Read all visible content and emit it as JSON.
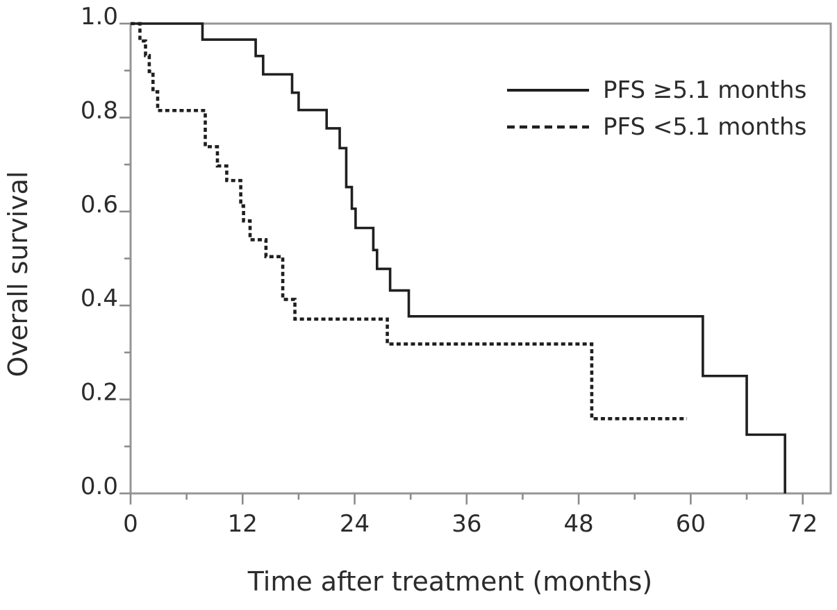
{
  "figure": {
    "background": "#ffffff",
    "frame_color": "#969696",
    "tick_color": "#8c8c8c",
    "curve_color": "#1f1f1f",
    "text_color": "#2b2b2b"
  },
  "chart_data": {
    "type": "line",
    "subtype": "kaplan-meier-step",
    "title": "",
    "xlabel": "Time after treatment (months)",
    "ylabel": "Overall survival",
    "xlim": [
      0,
      75
    ],
    "ylim": [
      0,
      1
    ],
    "x_major_ticks": [
      0,
      12,
      24,
      36,
      48,
      60,
      72
    ],
    "x_major_tick_labels": [
      "0",
      "12",
      "24",
      "36",
      "48",
      "60",
      "72"
    ],
    "x_minor_ticks": [
      6,
      18,
      30,
      42,
      54,
      66
    ],
    "y_major_ticks": [
      0,
      0.2,
      0.4,
      0.6,
      0.8,
      1
    ],
    "y_major_tick_labels": [
      "0.0",
      "0.2",
      "0.4",
      "0.6",
      "0.8",
      "1.0"
    ],
    "y_minor_ticks": [
      0.1,
      0.3,
      0.5,
      0.7,
      0.9
    ],
    "grid": false,
    "legend_position": "inside-upper-right",
    "series": [
      {
        "name": "PFS ≥5.1 months",
        "line_style": "solid",
        "steps": [
          [
            0,
            1.0
          ],
          [
            7.7,
            0.966
          ],
          [
            13.4,
            0.931
          ],
          [
            14.2,
            0.892
          ],
          [
            17.3,
            0.853
          ],
          [
            18.0,
            0.816
          ],
          [
            21.0,
            0.777
          ],
          [
            22.4,
            0.735
          ],
          [
            23.1,
            0.652
          ],
          [
            23.7,
            0.606
          ],
          [
            24.1,
            0.565
          ],
          [
            26.0,
            0.518
          ],
          [
            26.4,
            0.478
          ],
          [
            27.8,
            0.432
          ],
          [
            29.8,
            0.377
          ],
          [
            61.3,
            0.25
          ],
          [
            66.0,
            0.125
          ],
          [
            70.1,
            0.0
          ]
        ],
        "end_time": 70.1
      },
      {
        "name": "PFS <5.1 months",
        "line_style": "dashed",
        "steps": [
          [
            0,
            1.0
          ],
          [
            1.0,
            0.963
          ],
          [
            1.6,
            0.932
          ],
          [
            2.0,
            0.898
          ],
          [
            2.4,
            0.855
          ],
          [
            2.9,
            0.815
          ],
          [
            8.0,
            0.738
          ],
          [
            9.3,
            0.697
          ],
          [
            10.3,
            0.666
          ],
          [
            11.8,
            0.612
          ],
          [
            12.1,
            0.58
          ],
          [
            12.8,
            0.54
          ],
          [
            14.5,
            0.504
          ],
          [
            16.3,
            0.413
          ],
          [
            17.6,
            0.371
          ],
          [
            27.5,
            0.318
          ],
          [
            49.4,
            0.159
          ]
        ],
        "end_time": 59.6
      }
    ]
  }
}
